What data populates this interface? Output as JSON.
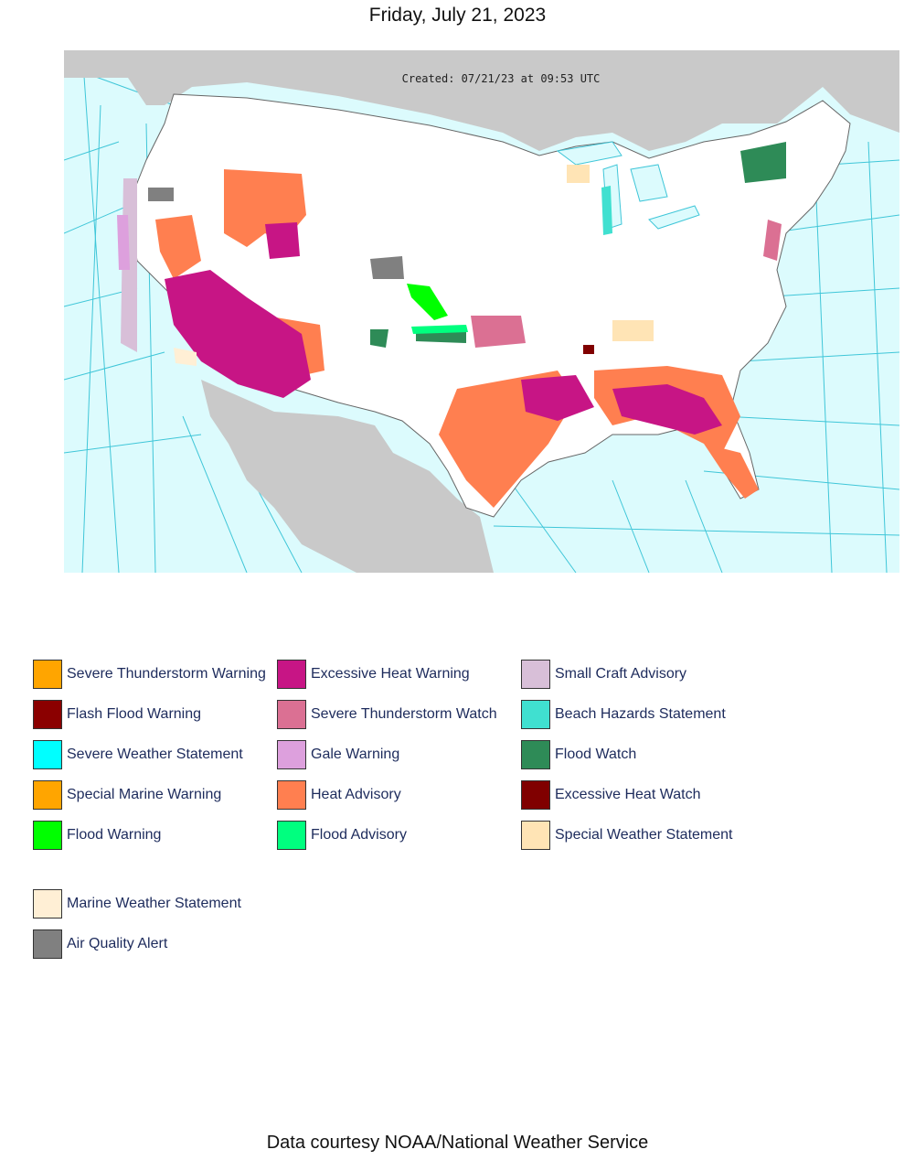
{
  "page": {
    "title": "Friday, July 21, 2023",
    "credit": "Data courtesy NOAA/National Weather Service"
  },
  "map": {
    "created": "Created: 07/21/23 at 09:53 UTC",
    "colors": {
      "ocean": "#dcfbfd",
      "land_outside": "#c9c9c9",
      "land_us": "#ffffff",
      "grid": "#3fc6d8"
    }
  },
  "legend": {
    "items": [
      {
        "label": "Severe Thunderstorm Warning",
        "color": "#ffa500"
      },
      {
        "label": "Excessive Heat Warning",
        "color": "#c71585"
      },
      {
        "label": "Small Craft Advisory",
        "color": "#d8bfd8"
      },
      {
        "label": "Flash Flood Warning",
        "color": "#8b0000"
      },
      {
        "label": "Severe Thunderstorm Watch",
        "color": "#db7093"
      },
      {
        "label": "Beach Hazards Statement",
        "color": "#40e0d0"
      },
      {
        "label": "Severe Weather Statement",
        "color": "#00ffff"
      },
      {
        "label": "Gale Warning",
        "color": "#dda0dd"
      },
      {
        "label": "Flood Watch",
        "color": "#2e8b57"
      },
      {
        "label": "Special Marine Warning",
        "color": "#ffa500"
      },
      {
        "label": "Heat Advisory",
        "color": "#ff7f50"
      },
      {
        "label": "Excessive Heat Watch",
        "color": "#800000"
      },
      {
        "label": "Flood Warning",
        "color": "#00ff00"
      },
      {
        "label": "Flood Advisory",
        "color": "#00ff7f"
      },
      {
        "label": "Special Weather Statement",
        "color": "#ffe4b5"
      },
      {
        "label": "Marine Weather Statement",
        "color": "#ffefd5"
      },
      {
        "label": "Air Quality Alert",
        "color": "#808080"
      }
    ]
  }
}
